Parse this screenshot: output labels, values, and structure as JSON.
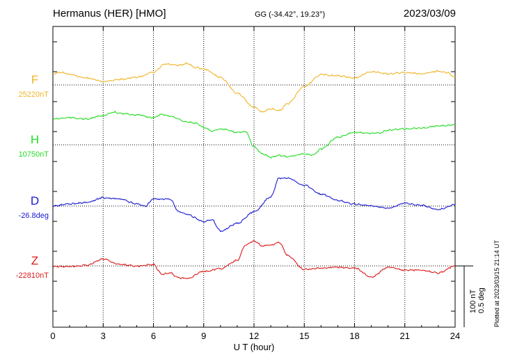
{
  "header": {
    "station": "Hermanus (HER)  [HMO]",
    "coords": "GG (-34.42°,  19.23°)",
    "date": "2023/03/09"
  },
  "footer": {
    "plotted": "Plotted at 2023/03/15 21:14 UT"
  },
  "scale": {
    "nt": "100 nT",
    "deg": "0.5 deg"
  },
  "chart_data": {
    "type": "line",
    "xlabel": "U T (hour)",
    "xlim": [
      0,
      24
    ],
    "xticks": [
      "0",
      "3",
      "6",
      "9",
      "12",
      "15",
      "18",
      "21",
      "24"
    ],
    "grid": true,
    "series": [
      {
        "name": "F",
        "baseline": "25220nT",
        "color": "#f0b428",
        "baseline_offset": -8,
        "values": [
          [
            0,
            -8
          ],
          [
            0.5,
            -10
          ],
          [
            1,
            -7
          ],
          [
            2,
            -2
          ],
          [
            3,
            3
          ],
          [
            4,
            0
          ],
          [
            5,
            -3
          ],
          [
            6,
            -10
          ],
          [
            6.7,
            -22
          ],
          [
            7.5,
            -20
          ],
          [
            8,
            -23
          ],
          [
            8.5,
            -17
          ],
          [
            9,
            -15
          ],
          [
            10,
            -3
          ],
          [
            11,
            20
          ],
          [
            12,
            40
          ],
          [
            12.5,
            47
          ],
          [
            13,
            42
          ],
          [
            13.5,
            45
          ],
          [
            14,
            35
          ],
          [
            15,
            10
          ],
          [
            16,
            -7
          ],
          [
            17,
            -5
          ],
          [
            18,
            -2
          ],
          [
            19,
            -11
          ],
          [
            20,
            -8
          ],
          [
            21,
            -10
          ],
          [
            22,
            -8
          ],
          [
            23,
            -12
          ],
          [
            23.5,
            -10
          ],
          [
            24,
            -3
          ]
        ]
      },
      {
        "name": "H",
        "baseline": "10750nT",
        "color": "#22dd22",
        "baseline_offset": -17,
        "values": [
          [
            0,
            -20
          ],
          [
            1,
            -22
          ],
          [
            2,
            -20
          ],
          [
            3,
            -25
          ],
          [
            3.7,
            -30
          ],
          [
            4,
            -28
          ],
          [
            5,
            -26
          ],
          [
            6,
            -22
          ],
          [
            6.5,
            -27
          ],
          [
            7,
            -24
          ],
          [
            8,
            -16
          ],
          [
            8.5,
            -14
          ],
          [
            9,
            -8
          ],
          [
            9.5,
            -3
          ],
          [
            10,
            -6
          ],
          [
            11,
            -1
          ],
          [
            11.5,
            -2
          ],
          [
            12,
            20
          ],
          [
            12.5,
            30
          ],
          [
            13,
            35
          ],
          [
            13.5,
            32
          ],
          [
            14,
            34
          ],
          [
            15,
            30
          ],
          [
            15.5,
            32
          ],
          [
            16,
            23
          ],
          [
            17,
            6
          ],
          [
            18,
            -1
          ],
          [
            19,
            0
          ],
          [
            19.5,
            0
          ],
          [
            20,
            -4
          ],
          [
            21,
            -6
          ],
          [
            22,
            -7
          ],
          [
            23,
            -10
          ],
          [
            24,
            -12
          ]
        ]
      },
      {
        "name": "D",
        "baseline": "-26.8deg",
        "color": "#1818d0",
        "baseline_offset": 0,
        "values": [
          [
            0,
            0
          ],
          [
            1,
            -3
          ],
          [
            2,
            -5
          ],
          [
            3,
            -12
          ],
          [
            4,
            -10
          ],
          [
            5,
            -3
          ],
          [
            5.5,
            0
          ],
          [
            6,
            -10
          ],
          [
            7,
            -10
          ],
          [
            7.5,
            8
          ],
          [
            8,
            12
          ],
          [
            9,
            22
          ],
          [
            9.5,
            20
          ],
          [
            10,
            36
          ],
          [
            11,
            25
          ],
          [
            12,
            8
          ],
          [
            13,
            -13
          ],
          [
            13.5,
            -40
          ],
          [
            14,
            -40
          ],
          [
            15,
            -30
          ],
          [
            16,
            -17
          ],
          [
            17,
            -8
          ],
          [
            18,
            -3
          ],
          [
            19,
            0
          ],
          [
            20,
            3
          ],
          [
            21,
            -4
          ],
          [
            22,
            -1
          ],
          [
            23,
            5
          ],
          [
            24,
            -2
          ]
        ]
      },
      {
        "name": "Z",
        "baseline": "-22810nT",
        "color": "#dd1818",
        "baseline_offset": 0,
        "values": [
          [
            0,
            1
          ],
          [
            1,
            1
          ],
          [
            2,
            -1
          ],
          [
            3,
            -10
          ],
          [
            4,
            -2
          ],
          [
            5,
            0
          ],
          [
            6,
            -2
          ],
          [
            6.5,
            12
          ],
          [
            7,
            10
          ],
          [
            7.5,
            17
          ],
          [
            8,
            18
          ],
          [
            9,
            8
          ],
          [
            10,
            4
          ],
          [
            11,
            -8
          ],
          [
            11.5,
            -30
          ],
          [
            12,
            -36
          ],
          [
            12.5,
            -29
          ],
          [
            13,
            -30
          ],
          [
            13.5,
            -34
          ],
          [
            14,
            -15
          ],
          [
            15,
            5
          ],
          [
            16,
            3
          ],
          [
            17,
            2
          ],
          [
            18,
            3
          ],
          [
            19,
            16
          ],
          [
            20,
            2
          ],
          [
            21,
            6
          ],
          [
            22,
            6
          ],
          [
            23,
            10
          ],
          [
            24,
            0
          ]
        ]
      }
    ]
  }
}
